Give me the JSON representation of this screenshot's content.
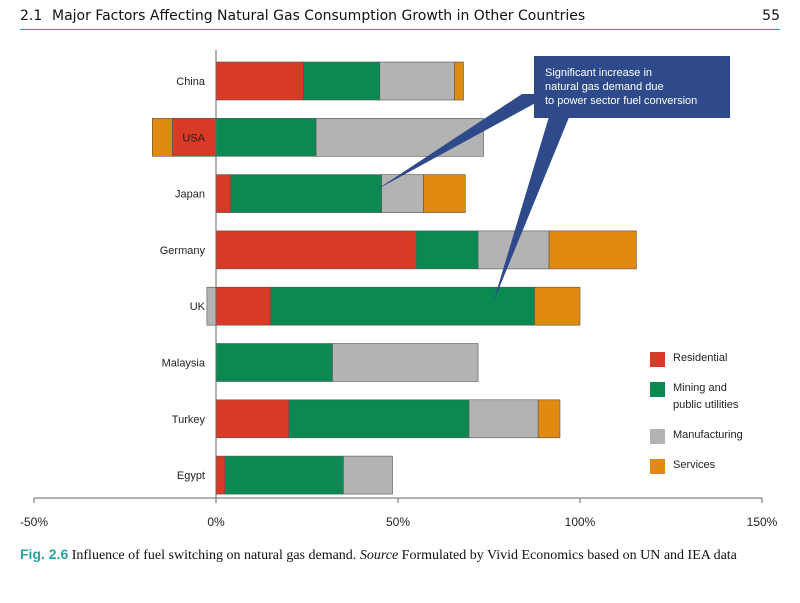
{
  "header": {
    "section": "2.1",
    "title": "Major Factors Affecting Natural Gas Consumption Growth in Other Countries",
    "page_number": "55"
  },
  "caption": {
    "label": "Fig. 2.6",
    "text": "Influence of fuel switching on natural gas demand.",
    "source_word": "Source",
    "source_text": "Formulated by Vivid Economics based on UN and IEA data"
  },
  "annotation": {
    "lines": [
      "Significant increase in",
      "natural gas demand due",
      "to power sector fuel conversion"
    ],
    "color": "#2e4a8a"
  },
  "chart_data": {
    "type": "bar",
    "orientation": "horizontal",
    "stacked": true,
    "categories": [
      "China",
      "USA",
      "Japan",
      "Germany",
      "UK",
      "Malaysia",
      "Turkey",
      "Egypt"
    ],
    "series": [
      {
        "name": "Residential",
        "color": "#d93a25",
        "values": [
          24,
          -12,
          4,
          55,
          15,
          0,
          20,
          2.5
        ]
      },
      {
        "name": "Mining and public utilities",
        "color": "#0a8a52",
        "values": [
          21,
          27.5,
          41.5,
          17,
          72.5,
          32,
          49.5,
          32.5
        ]
      },
      {
        "name": "Manufacturing",
        "color": "#b3b3b3",
        "values": [
          20.5,
          46,
          11.5,
          19.5,
          -2.5,
          40,
          19,
          13.5
        ]
      },
      {
        "name": "Services",
        "color": "#e08a10",
        "values": [
          2.5,
          -5.5,
          11.5,
          24,
          12.5,
          0,
          6,
          0
        ]
      }
    ],
    "xlim": [
      -50,
      150
    ],
    "xticks": [
      "-50%",
      "0%",
      "50%",
      "100%",
      "150%"
    ],
    "xtick_values": [
      -50,
      0,
      50,
      100,
      150
    ],
    "grid": false,
    "legend_position": "right",
    "legend_labels": [
      "Residential",
      "Mining and",
      "public utilities",
      "Manufacturing",
      "Services"
    ]
  }
}
